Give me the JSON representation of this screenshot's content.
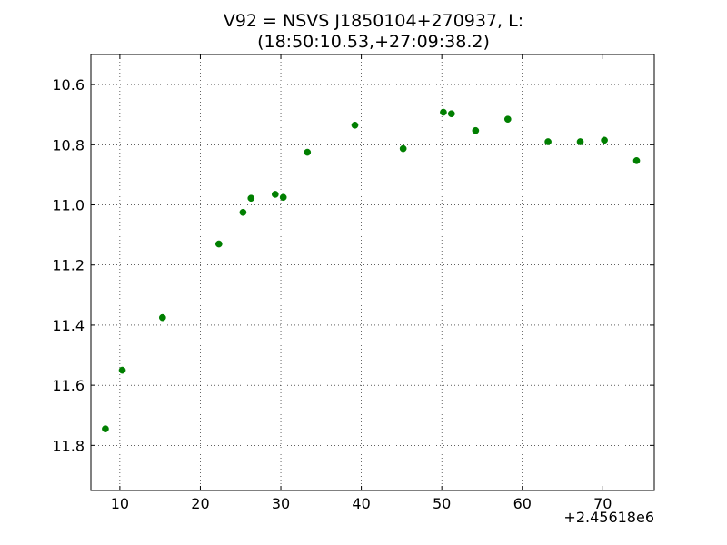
{
  "chart_data": {
    "type": "scatter",
    "title_lines": [
      "V92 = NSVS J1850104+270937, L:",
      "(18:50:10.53,+27:09:38.2)"
    ],
    "xlabel": "",
    "ylabel": "",
    "x_offset_label": "+2.45618e6",
    "xlim": [
      6.4,
      76.4
    ],
    "ylim": [
      11.95,
      10.5
    ],
    "y_inverted": true,
    "grid": true,
    "marker_color": "#007f00",
    "x_ticks": [
      10,
      20,
      30,
      40,
      50,
      60,
      70
    ],
    "y_ticks": [
      10.6,
      10.8,
      11.0,
      11.2,
      11.4,
      11.6,
      11.8
    ],
    "y_tick_labels": [
      "10.6",
      "10.8",
      "11.0",
      "11.2",
      "11.4",
      "11.6",
      "11.8"
    ],
    "points": [
      {
        "x": 8.2,
        "y": 11.745
      },
      {
        "x": 10.3,
        "y": 11.55
      },
      {
        "x": 15.3,
        "y": 11.375
      },
      {
        "x": 22.3,
        "y": 11.13
      },
      {
        "x": 25.3,
        "y": 11.025
      },
      {
        "x": 26.3,
        "y": 10.978
      },
      {
        "x": 29.3,
        "y": 10.965
      },
      {
        "x": 30.3,
        "y": 10.975
      },
      {
        "x": 33.3,
        "y": 10.825
      },
      {
        "x": 39.2,
        "y": 10.735
      },
      {
        "x": 45.2,
        "y": 10.813
      },
      {
        "x": 50.2,
        "y": 10.692
      },
      {
        "x": 51.2,
        "y": 10.697
      },
      {
        "x": 54.2,
        "y": 10.753
      },
      {
        "x": 58.2,
        "y": 10.715
      },
      {
        "x": 63.2,
        "y": 10.79
      },
      {
        "x": 67.2,
        "y": 10.79
      },
      {
        "x": 70.2,
        "y": 10.785
      },
      {
        "x": 74.2,
        "y": 10.853
      }
    ]
  }
}
